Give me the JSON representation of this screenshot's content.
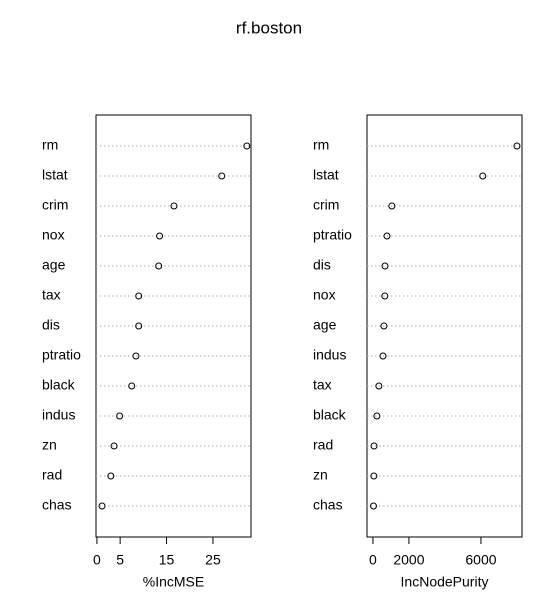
{
  "title": "rf.boston",
  "chart_data": [
    {
      "type": "dot",
      "xlabel": "%IncMSE",
      "categories": [
        "rm",
        "lstat",
        "crim",
        "nox",
        "age",
        "tax",
        "dis",
        "ptratio",
        "black",
        "indus",
        "zn",
        "rad",
        "chas"
      ],
      "values": [
        32.3,
        26.9,
        16.6,
        13.5,
        13.3,
        9.0,
        9.0,
        8.4,
        7.5,
        4.9,
        3.7,
        3.0,
        1.1
      ],
      "xlim": [
        -0.2,
        33.2
      ],
      "xticks": [
        0,
        5,
        15,
        25
      ],
      "grid": true,
      "color": "#000000"
    },
    {
      "type": "dot",
      "xlabel": "IncNodePurity",
      "categories": [
        "rm",
        "lstat",
        "crim",
        "ptratio",
        "dis",
        "nox",
        "age",
        "indus",
        "tax",
        "black",
        "rad",
        "zn",
        "chas"
      ],
      "values": [
        8000,
        6100,
        1050,
        780,
        670,
        660,
        610,
        560,
        330,
        220,
        60,
        50,
        30
      ],
      "xlim": [
        -330,
        8280
      ],
      "xticks": [
        0,
        2000,
        6000
      ],
      "grid": true,
      "color": "#000000"
    }
  ]
}
